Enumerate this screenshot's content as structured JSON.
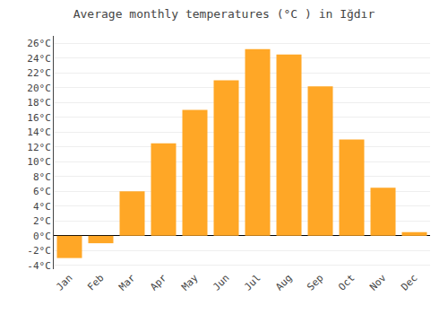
{
  "chart_data": {
    "type": "bar",
    "title": "Average monthly temperatures (°C ) in Iğdır",
    "categories": [
      "Jan",
      "Feb",
      "Mar",
      "Apr",
      "May",
      "Jun",
      "Jul",
      "Aug",
      "Sep",
      "Oct",
      "Nov",
      "Dec"
    ],
    "values": [
      -3.0,
      -1.0,
      6.0,
      12.5,
      17.0,
      21.0,
      25.2,
      24.5,
      20.2,
      13.0,
      6.5,
      0.5
    ],
    "color": "#FFA726",
    "ylim": [
      -4.5,
      27
    ],
    "yticks": [
      {
        "value": -4,
        "label": "-4°C"
      },
      {
        "value": -2,
        "label": "-2°C"
      },
      {
        "value": 0,
        "label": "0°C"
      },
      {
        "value": 2,
        "label": "2°C"
      },
      {
        "value": 4,
        "label": "4°C"
      },
      {
        "value": 6,
        "label": "6°C"
      },
      {
        "value": 8,
        "label": "8°C"
      },
      {
        "value": 10,
        "label": "10°C"
      },
      {
        "value": 12,
        "label": "12°C"
      },
      {
        "value": 14,
        "label": "14°C"
      },
      {
        "value": 16,
        "label": "16°C"
      },
      {
        "value": 18,
        "label": "18°C"
      },
      {
        "value": 20,
        "label": "20°C"
      },
      {
        "value": 22,
        "label": "22°C"
      },
      {
        "value": 24,
        "label": "24°C"
      },
      {
        "value": 26,
        "label": "26°C"
      }
    ],
    "grid": true
  }
}
